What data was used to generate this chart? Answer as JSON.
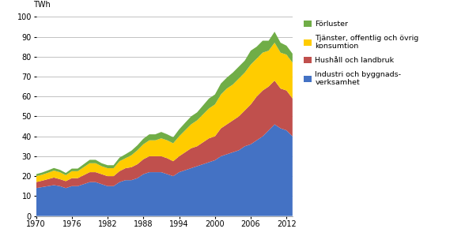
{
  "years": [
    1970,
    1971,
    1972,
    1973,
    1974,
    1975,
    1976,
    1977,
    1978,
    1979,
    1980,
    1981,
    1982,
    1983,
    1984,
    1985,
    1986,
    1987,
    1988,
    1989,
    1990,
    1991,
    1992,
    1993,
    1994,
    1995,
    1996,
    1997,
    1998,
    1999,
    2000,
    2001,
    2002,
    2003,
    2004,
    2005,
    2006,
    2007,
    2008,
    2009,
    2010,
    2011,
    2012,
    2013
  ],
  "industri": [
    14,
    14.5,
    15,
    15.5,
    15,
    14,
    15,
    15,
    16,
    17,
    17,
    16,
    15,
    15,
    17,
    18,
    18,
    19,
    21,
    22,
    22,
    22,
    21,
    20,
    22,
    23,
    24,
    25,
    26,
    27,
    28,
    30,
    31,
    32,
    33,
    35,
    36,
    38,
    40,
    43,
    46,
    44,
    43,
    40
  ],
  "hushall": [
    3,
    3.2,
    3.5,
    3.8,
    3.5,
    3.5,
    4,
    4,
    4.5,
    5,
    5,
    5,
    5,
    5,
    5.5,
    6,
    6.5,
    7,
    7.5,
    8,
    8,
    8,
    8,
    7.5,
    8,
    9,
    10,
    10,
    11,
    12,
    12,
    14,
    15,
    16,
    17,
    18,
    20,
    22,
    23,
    22,
    22,
    20,
    20,
    19
  ],
  "tjanster": [
    3,
    3,
    3.2,
    3.5,
    3.5,
    3,
    3.5,
    3.5,
    4,
    4.5,
    4.5,
    4,
    4,
    4,
    5,
    5,
    6,
    7,
    7.5,
    8,
    8,
    9,
    9,
    9,
    10,
    11,
    12,
    13,
    14,
    15,
    16,
    17,
    18,
    18,
    19,
    19,
    20,
    19,
    19,
    18,
    19,
    18,
    18,
    18
  ],
  "forluster": [
    1,
    1.1,
    1.2,
    1.3,
    1.2,
    1.1,
    1.3,
    1.3,
    1.5,
    1.7,
    1.7,
    1.5,
    1.5,
    1.5,
    1.8,
    2,
    2.3,
    2.5,
    2.8,
    3,
    3,
    3.2,
    3,
    3,
    3.5,
    3.8,
    4,
    4,
    4.5,
    5,
    5,
    5.5,
    5.5,
    6,
    6,
    6,
    7,
    6,
    6,
    5,
    5.5,
    5,
    4.5,
    4.5
  ],
  "color_industri": "#4472C4",
  "color_hushall": "#C0504D",
  "color_tjanster": "#FFCC00",
  "color_forluster": "#70AD47",
  "ylabel": "TWh",
  "ylim": [
    0,
    100
  ],
  "xlim": [
    1970,
    2013
  ],
  "xticks": [
    1970,
    1976,
    1982,
    1988,
    1994,
    2000,
    2006,
    2012
  ],
  "yticks": [
    0,
    10,
    20,
    30,
    40,
    50,
    60,
    70,
    80,
    90,
    100
  ],
  "legend_labels": [
    "Förluster",
    "Tjänster, offentlig och övrig\nkonsumtion",
    "Hushåll och landbruk",
    "Industri och byggnads-\nverksamhet"
  ],
  "legend_colors": [
    "#70AD47",
    "#FFCC00",
    "#C0504D",
    "#4472C4"
  ],
  "background_color": "#FFFFFF",
  "figwidth": 5.69,
  "figheight": 3.04,
  "dpi": 100
}
